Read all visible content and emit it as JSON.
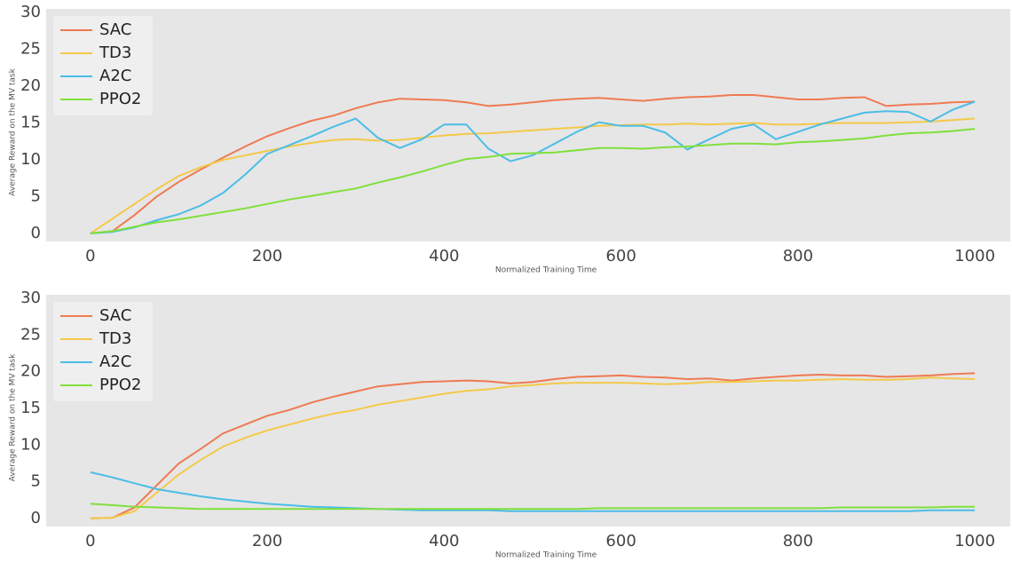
{
  "chart_data": [
    {
      "type": "line",
      "x_label": "Normalized Training Time",
      "y_label": "Average Reward on the MV task",
      "x": [
        0,
        25,
        50,
        75,
        100,
        125,
        150,
        175,
        200,
        225,
        250,
        275,
        300,
        325,
        350,
        375,
        400,
        425,
        450,
        475,
        500,
        525,
        550,
        575,
        600,
        625,
        650,
        675,
        700,
        725,
        750,
        775,
        800,
        825,
        850,
        875,
        900,
        925,
        950,
        975,
        1000
      ],
      "series": [
        {
          "name": "SAC",
          "color": "#ef7a52",
          "values": [
            0,
            0.3,
            2.5,
            5,
            7,
            8.7,
            10.3,
            11.8,
            13.2,
            14.3,
            15.3,
            16,
            17,
            17.8,
            18.3,
            18.2,
            18.1,
            17.8,
            17.3,
            17.5,
            17.8,
            18.1,
            18.3,
            18.4,
            18.2,
            18,
            18.3,
            18.5,
            18.6,
            18.8,
            18.8,
            18.5,
            18.2,
            18.2,
            18.4,
            18.5,
            17.3,
            17.5,
            17.6,
            17.8,
            17.9
          ]
        },
        {
          "name": "TD3",
          "color": "#f4c94a",
          "values": [
            0,
            2,
            4,
            6,
            7.8,
            9,
            10,
            10.6,
            11.2,
            11.8,
            12.3,
            12.7,
            12.8,
            12.6,
            12.7,
            13,
            13.3,
            13.5,
            13.6,
            13.8,
            14,
            14.2,
            14.4,
            14.6,
            14.7,
            14.8,
            14.8,
            14.9,
            14.8,
            14.9,
            15,
            14.8,
            14.8,
            14.9,
            15,
            15,
            15,
            15.1,
            15.2,
            15.4,
            15.6
          ]
        },
        {
          "name": "A2C",
          "color": "#4bbde6",
          "values": [
            0,
            0.2,
            0.8,
            1.8,
            2.6,
            3.8,
            5.5,
            8,
            10.8,
            12,
            13.2,
            14.5,
            15.6,
            13,
            11.6,
            12.8,
            14.8,
            14.8,
            11.5,
            9.8,
            10.6,
            12.2,
            13.8,
            15.1,
            14.6,
            14.6,
            13.7,
            11.4,
            12.8,
            14.2,
            14.8,
            12.8,
            13.8,
            14.8,
            15.6,
            16.4,
            16.6,
            16.5,
            15.2,
            16.8,
            17.9
          ]
        },
        {
          "name": "PPO2",
          "color": "#80e03c",
          "values": [
            0,
            0.3,
            0.9,
            1.5,
            1.9,
            2.4,
            2.9,
            3.4,
            4,
            4.6,
            5.1,
            5.6,
            6.1,
            6.9,
            7.6,
            8.4,
            9.3,
            10.1,
            10.4,
            10.8,
            10.9,
            11,
            11.3,
            11.6,
            11.6,
            11.5,
            11.7,
            11.8,
            12,
            12.2,
            12.2,
            12.1,
            12.4,
            12.5,
            12.7,
            12.9,
            13.3,
            13.6,
            13.7,
            13.9,
            14.2
          ]
        }
      ],
      "xlim": [
        -50,
        1040
      ],
      "ylim": [
        -1.1,
        30.5
      ],
      "xticks": [
        0,
        200,
        400,
        600,
        800,
        1000
      ],
      "yticks": [
        0,
        5,
        10,
        15,
        20,
        25,
        30
      ],
      "grid": false,
      "legend": "upper left"
    },
    {
      "type": "line",
      "x_label": "Normalized Training Time",
      "y_label": "Average Reward on the MV task",
      "x": [
        0,
        25,
        50,
        75,
        100,
        125,
        150,
        175,
        200,
        225,
        250,
        275,
        300,
        325,
        350,
        375,
        400,
        425,
        450,
        475,
        500,
        525,
        550,
        575,
        600,
        625,
        650,
        675,
        700,
        725,
        750,
        775,
        800,
        825,
        850,
        875,
        900,
        925,
        950,
        975,
        1000
      ],
      "series": [
        {
          "name": "SAC",
          "color": "#ef7a52",
          "values": [
            0,
            0.1,
            1.5,
            4.5,
            7.5,
            9.5,
            11.6,
            12.8,
            14,
            14.8,
            15.8,
            16.6,
            17.3,
            18,
            18.3,
            18.6,
            18.7,
            18.8,
            18.7,
            18.4,
            18.6,
            19,
            19.3,
            19.4,
            19.5,
            19.3,
            19.2,
            19,
            19.1,
            18.8,
            19.1,
            19.3,
            19.5,
            19.6,
            19.5,
            19.5,
            19.3,
            19.4,
            19.5,
            19.7,
            19.8
          ]
        },
        {
          "name": "TD3",
          "color": "#f4c94a",
          "values": [
            0,
            0.1,
            1,
            3.5,
            6,
            8,
            9.8,
            11,
            12,
            12.8,
            13.6,
            14.3,
            14.8,
            15.5,
            16,
            16.5,
            17,
            17.4,
            17.6,
            18,
            18.2,
            18.4,
            18.5,
            18.5,
            18.5,
            18.4,
            18.3,
            18.4,
            18.6,
            18.6,
            18.7,
            18.8,
            18.8,
            18.9,
            19,
            18.9,
            18.9,
            19,
            19.2,
            19.1,
            19
          ]
        },
        {
          "name": "A2C",
          "color": "#4bbde6",
          "values": [
            6.3,
            5.6,
            4.8,
            4,
            3.5,
            3,
            2.6,
            2.3,
            2,
            1.8,
            1.6,
            1.5,
            1.4,
            1.3,
            1.2,
            1.1,
            1.1,
            1.1,
            1.1,
            1,
            1,
            1,
            1,
            1,
            1,
            1,
            1,
            1,
            1,
            1,
            1,
            1,
            1,
            1,
            1,
            1,
            1,
            1,
            1.1,
            1.1,
            1.1
          ]
        },
        {
          "name": "PPO2",
          "color": "#80e03c",
          "values": [
            2,
            1.8,
            1.6,
            1.5,
            1.4,
            1.3,
            1.3,
            1.3,
            1.3,
            1.3,
            1.3,
            1.3,
            1.3,
            1.3,
            1.3,
            1.3,
            1.3,
            1.3,
            1.3,
            1.3,
            1.3,
            1.3,
            1.3,
            1.4,
            1.4,
            1.4,
            1.4,
            1.4,
            1.4,
            1.4,
            1.4,
            1.4,
            1.4,
            1.4,
            1.5,
            1.5,
            1.5,
            1.5,
            1.5,
            1.6,
            1.6
          ]
        }
      ],
      "xlim": [
        -50,
        1040
      ],
      "ylim": [
        -1.1,
        30.5
      ],
      "xticks": [
        0,
        200,
        400,
        600,
        800,
        1000
      ],
      "yticks": [
        0,
        5,
        10,
        15,
        20,
        25,
        30
      ],
      "grid": false,
      "legend": "upper left"
    }
  ]
}
